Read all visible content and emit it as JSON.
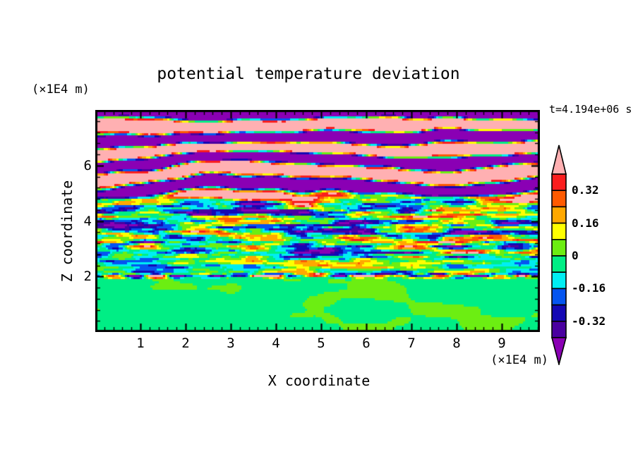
{
  "page": {
    "background": "#FFFFFF"
  },
  "chart_data": {
    "type": "heatmap",
    "title": "potential temperature deviation",
    "xlabel": "X coordinate",
    "ylabel": "Z coordinate",
    "x_units": "(×1E4 m)",
    "y_units": "(×1E4 m)",
    "time_annotation": "t=4.194e+06 s",
    "x_range": [
      0,
      9.84
    ],
    "z_range": [
      0,
      8
    ],
    "x_major_ticks": [
      1,
      2,
      3,
      4,
      5,
      6,
      7,
      8,
      9
    ],
    "x_minor_tick_step": 0.2,
    "z_major_ticks": [
      2,
      4,
      6
    ],
    "z_minor_tick_step": 0.4,
    "contour_levels": [
      -0.4,
      -0.32,
      -0.24,
      -0.16,
      -0.08,
      0,
      0.08,
      0.16,
      0.24,
      0.32,
      0.4
    ],
    "colorbar_labels": [
      "0.32",
      "0.16",
      "0",
      "-0.16",
      "-0.32"
    ],
    "colorbar_labeled_levels": [
      0.32,
      0.16,
      0,
      -0.16,
      -0.32
    ],
    "palette": {
      "below_min": "#8A00B4",
      "bands_low_to_high": [
        "#4A00A0",
        "#1408B4",
        "#0555F0",
        "#00EEF2",
        "#00EE85",
        "#6CEE12",
        "#FFFF00",
        "#FFA800",
        "#FF5A00",
        "#FA1E1E"
      ],
      "above_max": "#FFB0B2",
      "frame_color": "#000000"
    },
    "field_zones": [
      {
        "name": "stratified-wave-bands",
        "z_from": 4.8,
        "z_to": 8.0,
        "z_wavelength": 0.92,
        "amplitude": 1.15,
        "phase_noise": 3.0,
        "description": "wavy horizontal bands saturating above +0.40 (pink) and below -0.40 (purple) with thin rainbow contour fringes"
      },
      {
        "name": "turbulent-shear-layer",
        "z_from": 2.1,
        "z_to": 4.8,
        "amplitude": 0.6,
        "description": "thin horizontally elongated turbulent streaks spanning the full color range from red/orange to navy/indigo over green-cyan background"
      },
      {
        "name": "convective-boundary-layer",
        "z_from": 0.0,
        "z_to": 2.0,
        "amplitude": 0.06,
        "bias": -0.012,
        "description": "weak plumes near zero: chartreuse blobs on spring-green background"
      },
      {
        "name": "inversion-interface",
        "z_center": 2.02,
        "thickness": 0.08,
        "amplitude": 1.0,
        "description": "thin multicolored line capping the boundary layer"
      }
    ]
  }
}
